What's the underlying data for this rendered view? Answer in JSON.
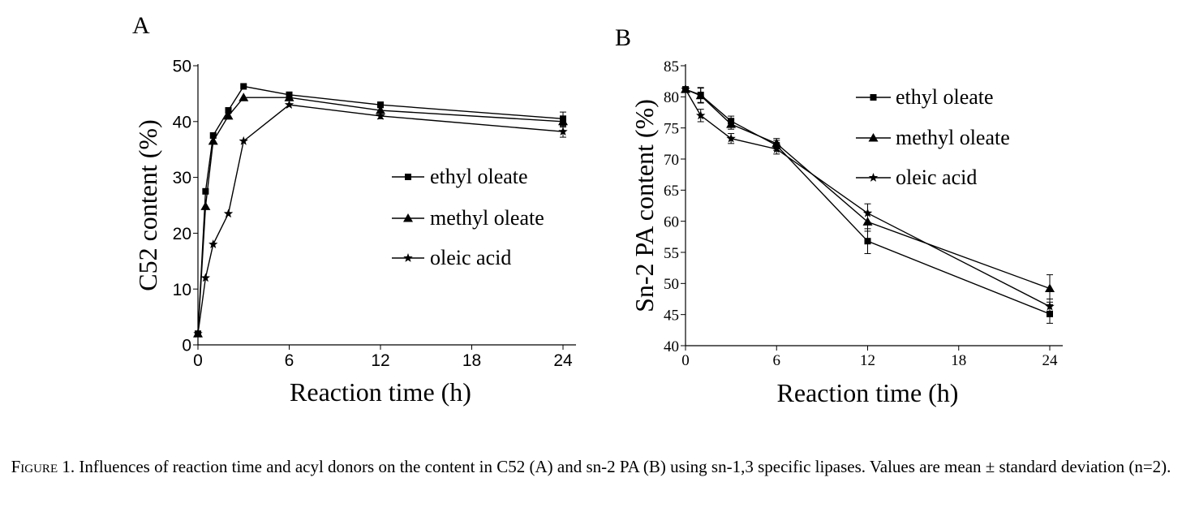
{
  "chart_data": [
    {
      "panel_label": "A",
      "type": "line",
      "xlabel": "Reaction time (h)",
      "ylabel": "C52 content (%)",
      "xlim": [
        0,
        24
      ],
      "ylim": [
        0,
        50
      ],
      "x_ticks": [
        0,
        6,
        12,
        18,
        24
      ],
      "y_ticks": [
        0,
        10,
        20,
        30,
        40,
        50
      ],
      "legend_position": "center-right",
      "series": [
        {
          "name": "ethyl oleate",
          "marker": "square",
          "x": [
            0,
            0.5,
            1,
            2,
            3,
            6,
            12,
            24
          ],
          "y": [
            2,
            27.5,
            37.5,
            42,
            46.3,
            44.8,
            43,
            40.5
          ],
          "err": [
            0,
            0,
            0,
            0,
            0,
            0,
            0.5,
            1.2
          ]
        },
        {
          "name": "methyl oleate",
          "marker": "triangle",
          "x": [
            0,
            0.5,
            1,
            2,
            3,
            6,
            12,
            24
          ],
          "y": [
            2,
            24.8,
            36.5,
            41,
            44.3,
            44.3,
            42,
            40
          ],
          "err": [
            0,
            0,
            0,
            0,
            0,
            0,
            0.5,
            1
          ]
        },
        {
          "name": "oleic acid",
          "marker": "star",
          "x": [
            0,
            0.5,
            1,
            2,
            3,
            6,
            12,
            24
          ],
          "y": [
            2,
            12,
            18,
            23.5,
            36.5,
            43,
            41,
            38.2
          ],
          "err": [
            0,
            0,
            0,
            0,
            0,
            0,
            0.5,
            1
          ]
        }
      ]
    },
    {
      "panel_label": "B",
      "type": "line",
      "xlabel": "Reaction time (h)",
      "ylabel": "Sn-2 PA content (%)",
      "xlim": [
        0,
        24
      ],
      "ylim": [
        40,
        85
      ],
      "x_ticks": [
        0,
        6,
        12,
        18,
        24
      ],
      "y_ticks": [
        40,
        45,
        50,
        55,
        60,
        65,
        70,
        75,
        80,
        85
      ],
      "legend_position": "top-right",
      "series": [
        {
          "name": "ethyl oleate",
          "marker": "square",
          "x": [
            0,
            1,
            3,
            6,
            12,
            24
          ],
          "y": [
            81.2,
            80.3,
            76.1,
            72.2,
            56.8,
            45.1
          ],
          "err": [
            0.3,
            1.2,
            0.8,
            0.8,
            2,
            1.5
          ]
        },
        {
          "name": "methyl oleate",
          "marker": "triangle",
          "x": [
            0,
            1,
            3,
            6,
            12,
            24
          ],
          "y": [
            81.2,
            80.2,
            75.6,
            72.5,
            59.9,
            49.2
          ],
          "err": [
            0.3,
            1.2,
            0.8,
            0.8,
            1.5,
            2.2
          ]
        },
        {
          "name": "oleic acid",
          "marker": "star",
          "x": [
            0,
            1,
            3,
            6,
            12,
            24
          ],
          "y": [
            81.2,
            77,
            73.3,
            71.6,
            61.3,
            46.3
          ],
          "err": [
            0.3,
            1,
            0.8,
            0.8,
            1.5,
            1.2
          ]
        }
      ]
    }
  ],
  "caption": {
    "label": "Figure 1.",
    "text": " Influences of reaction time and acyl donors on the content in C52 (A) and sn-2 PA (B) using sn-1,3 specific lipases. Values are mean ± standard deviation (n=2)."
  }
}
